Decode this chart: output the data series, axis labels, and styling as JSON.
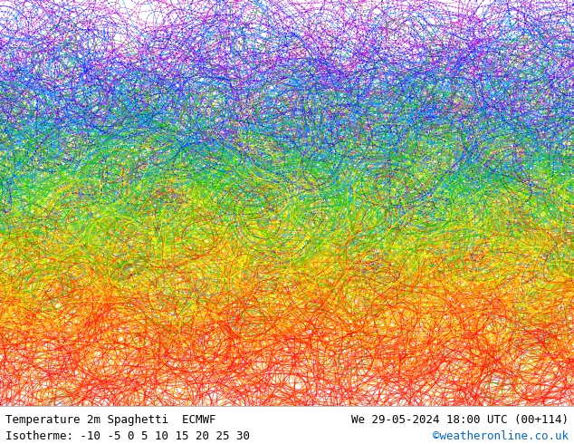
{
  "title_left": "Temperature 2m Spaghetti  ECMWF",
  "title_right": "We 29-05-2024 18:00 UTC (00+114)",
  "subtitle_left": "Isotherme: -10 -5 0 5 10 15 20 25 30",
  "subtitle_right": "©weatheronline.co.uk",
  "subtitle_right_color": "#0066cc",
  "bg_color": "#ffffff",
  "text_color": "#000000",
  "figsize": [
    6.34,
    4.9
  ],
  "dpi": 100,
  "isotherm_values": [
    -10,
    -5,
    0,
    5,
    10,
    15,
    20,
    25,
    30
  ],
  "isotherm_colors": [
    "#cc00cc",
    "#0000ff",
    "#00aaff",
    "#00cc00",
    "#88cc00",
    "#ffff00",
    "#ffaa00",
    "#ff4400",
    "#ff0000"
  ],
  "font_size_title": 9,
  "font_size_subtitle": 9,
  "seed": 42,
  "n_members": 50,
  "lon_min": -110,
  "lon_max": 50,
  "lat_min": -20,
  "lat_max": 75
}
